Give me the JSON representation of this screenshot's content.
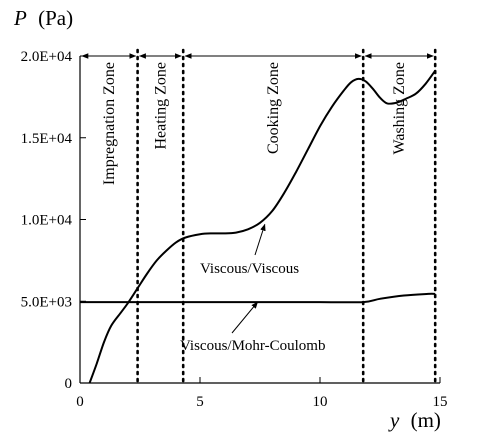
{
  "chart_data": {
    "type": "line",
    "ylabel": "P (Pa)",
    "ylabel_symbol": "P",
    "ylabel_unit": "(Pa)",
    "xlabel": "y (m)",
    "xlabel_symbol": "y",
    "xlabel_unit": "(m)",
    "xlim": [
      0,
      15
    ],
    "ylim": [
      0,
      20000
    ],
    "grid": false,
    "x_ticks": [
      0,
      5,
      10,
      15
    ],
    "x_tick_labels": [
      "0",
      "5",
      "10",
      "15"
    ],
    "y_ticks": [
      0,
      5000,
      10000,
      15000,
      20000
    ],
    "y_tick_labels": [
      "0",
      "5.0E+03",
      "1.0E+04",
      "1.5E+04",
      "2.0E+04"
    ],
    "zone_boundaries": [
      2.4,
      4.3,
      11.8,
      14.8
    ],
    "zones": [
      {
        "label": "Impregnation Zone",
        "x_start": 0,
        "x_end": 2.4
      },
      {
        "label": "Heating Zone",
        "x_start": 2.4,
        "x_end": 4.3
      },
      {
        "label": "Cooking Zone",
        "x_start": 4.3,
        "x_end": 11.8
      },
      {
        "label": "Washing Zone",
        "x_start": 11.8,
        "x_end": 14.8
      }
    ],
    "series": [
      {
        "name": "Viscous/Viscous",
        "x": [
          0.4,
          0.7,
          1.0,
          1.3,
          1.7,
          2.0,
          2.4,
          2.8,
          3.2,
          3.6,
          4.0,
          4.4,
          5.0,
          5.5,
          6.0,
          6.5,
          7.0,
          7.5,
          8.0,
          8.5,
          9.0,
          9.5,
          10.0,
          10.5,
          11.0,
          11.3,
          11.6,
          11.9,
          12.2,
          12.5,
          12.8,
          13.2,
          13.6,
          14.0,
          14.4,
          14.8
        ],
        "values": [
          0,
          1200,
          2500,
          3500,
          4300,
          4900,
          5800,
          6700,
          7500,
          8100,
          8600,
          8900,
          9100,
          9150,
          9150,
          9200,
          9400,
          9800,
          10500,
          11600,
          12900,
          14300,
          15700,
          16900,
          17900,
          18400,
          18600,
          18450,
          18000,
          17450,
          17100,
          17150,
          17400,
          17700,
          18300,
          19100
        ]
      },
      {
        "name": "Viscous/Mohr-Coulomb",
        "x": [
          0,
          2.4,
          4.3,
          6.0,
          8.0,
          10.0,
          11.8,
          12.5,
          13.5,
          14.5,
          14.8
        ],
        "values": [
          4950,
          4950,
          4950,
          4950,
          4950,
          4950,
          4950,
          5150,
          5350,
          5450,
          5450
        ]
      }
    ],
    "annotations": [
      {
        "text": "Viscous/Viscous",
        "target_series": "Viscous/Viscous",
        "point_x": 7.7,
        "point_y": 9700
      },
      {
        "text": "Viscous/Mohr-Coulomb",
        "target_series": "Viscous/Mohr-Coulomb",
        "point_x": 7.4,
        "point_y": 4950
      }
    ]
  }
}
